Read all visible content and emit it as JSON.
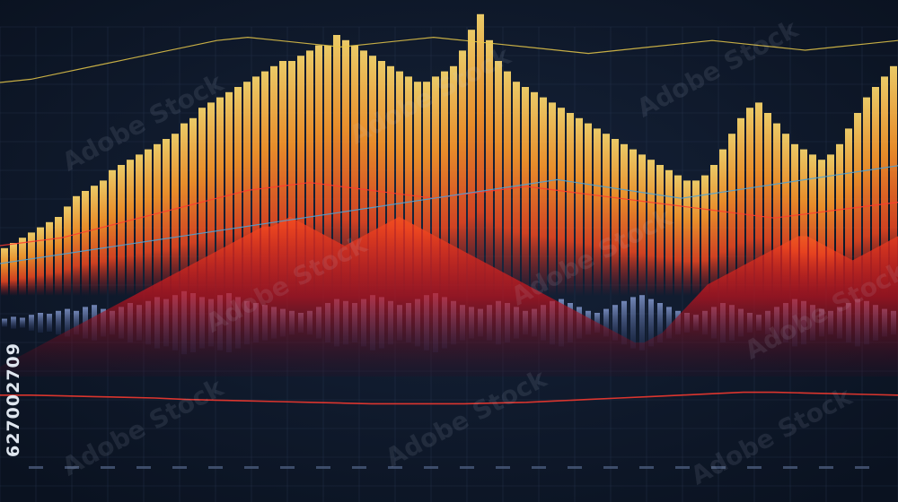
{
  "chart_data": {
    "type": "bar",
    "title": "",
    "xlabel": "",
    "ylabel": "",
    "grid": true,
    "ylim": [
      0,
      100
    ],
    "series": [
      {
        "values": [
          8,
          10,
          12,
          14,
          16,
          18,
          20,
          24,
          28,
          30,
          32,
          34,
          38,
          40,
          42,
          44,
          46,
          48,
          50,
          52,
          56,
          58,
          62,
          64,
          66,
          68,
          70,
          72,
          74,
          76,
          78,
          80,
          80,
          82,
          84,
          86,
          86,
          90,
          88,
          86,
          84,
          82,
          80,
          78,
          76,
          74,
          72,
          72,
          74,
          76,
          78,
          84,
          92,
          98,
          88,
          80,
          76,
          72,
          70,
          68,
          66,
          64,
          62,
          60,
          58,
          56,
          54,
          52,
          50,
          48,
          46,
          44,
          42,
          40,
          38,
          36,
          34,
          34,
          36,
          40,
          46,
          52,
          58,
          62,
          64,
          60,
          56,
          52,
          48,
          46,
          44,
          42,
          44,
          48,
          54,
          60,
          66,
          70,
          74,
          78
        ]
      },
      {
        "values": [
          4,
          6,
          8,
          10,
          12,
          14,
          16,
          18,
          20,
          22,
          24,
          26,
          28,
          30,
          32,
          34,
          36,
          38,
          40,
          42,
          44,
          46,
          48,
          50,
          52,
          54,
          56,
          58,
          60,
          62,
          62,
          64,
          66,
          64,
          62,
          60,
          58,
          56,
          54,
          56,
          58,
          60,
          62,
          64,
          66,
          64,
          62,
          60,
          58,
          56,
          54,
          52,
          50,
          48,
          46,
          44,
          42,
          40,
          38,
          36,
          34,
          32,
          30,
          28,
          26,
          24,
          22,
          20,
          18,
          16,
          14,
          14,
          16,
          18,
          22,
          26,
          30,
          34,
          38,
          40,
          42,
          44,
          46,
          48,
          50,
          52,
          54,
          56,
          58,
          58,
          56,
          54,
          52,
          50,
          48,
          50,
          52,
          54,
          56,
          58
        ]
      },
      {
        "values": [
          4,
          6,
          5,
          8,
          10,
          9,
          12,
          14,
          12,
          16,
          18,
          14,
          12,
          16,
          20,
          18,
          22,
          26,
          24,
          28,
          32,
          30,
          26,
          24,
          28,
          30,
          26,
          22,
          20,
          18,
          16,
          14,
          12,
          10,
          12,
          16,
          20,
          24,
          22,
          20,
          24,
          28,
          26,
          22,
          18,
          20,
          24,
          28,
          30,
          26,
          22,
          18,
          16,
          14,
          18,
          22,
          20,
          16,
          12,
          14,
          18,
          22,
          24,
          20,
          16,
          12,
          10,
          14,
          18,
          22,
          26,
          28,
          24,
          20,
          16,
          12,
          10,
          8,
          12,
          16,
          20,
          18,
          14,
          10,
          8,
          12,
          16,
          20,
          24,
          22,
          18,
          14,
          12,
          16,
          20,
          24,
          22,
          18,
          14,
          12
        ]
      }
    ],
    "lines": [
      {
        "values": [
          30,
          32,
          34,
          38,
          42,
          46,
          50,
          54,
          58,
          60,
          62,
          60,
          58,
          56,
          54,
          56,
          58,
          60,
          58,
          56,
          54,
          52,
          50,
          48,
          46,
          44,
          46,
          48,
          50,
          52
        ]
      },
      {
        "values": [
          60,
          62,
          66,
          70,
          74,
          78,
          82,
          86,
          88,
          86,
          84,
          82,
          84,
          86,
          88,
          86,
          84,
          82,
          80,
          78,
          80,
          82,
          84,
          86,
          84,
          82,
          80,
          82,
          84,
          86
        ]
      },
      {
        "values": [
          10,
          12,
          14,
          16,
          18,
          20,
          22,
          24,
          26,
          28,
          30,
          32,
          34,
          36,
          38,
          40,
          42,
          44,
          46,
          44,
          42,
          40,
          38,
          40,
          42,
          44,
          46,
          48,
          50,
          52
        ]
      },
      {
        "values": [
          24,
          24,
          23,
          22,
          21,
          20,
          18,
          17,
          16,
          15,
          14,
          13,
          12,
          12,
          12,
          12,
          13,
          14,
          16,
          18,
          20,
          22,
          24,
          26,
          28,
          28,
          27,
          26,
          25,
          24
        ]
      }
    ]
  },
  "side_id": "627002709",
  "watermark": "Adobe Stock",
  "colors": {
    "background": "#0d1826",
    "grid": "#2b3a55",
    "bar_top": "#f0c24a",
    "bar_mid": "#ff8a1f",
    "bar_bottom": "#e8321a",
    "area": "#c4161c",
    "low_bars": "#5b6a9a",
    "line_yellow": "#e6c84a",
    "line_red": "#ff3b2f",
    "line_blue": "#4aa3d8"
  }
}
